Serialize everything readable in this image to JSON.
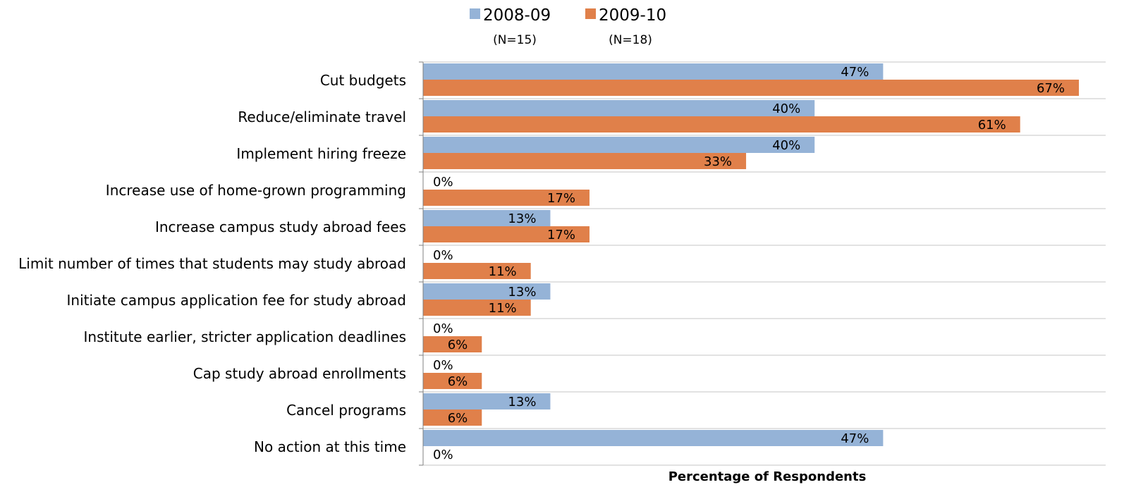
{
  "chart_data": {
    "type": "bar",
    "orientation": "horizontal",
    "categories": [
      "Cut budgets",
      "Reduce/eliminate travel",
      "Implement hiring freeze",
      "Increase use of home-grown programming",
      "Increase campus study abroad fees",
      "Limit number of times that students may study abroad",
      "Initiate campus application fee for study abroad",
      "Institute earlier, stricter application deadlines",
      "Cap study abroad enrollments",
      "Cancel programs",
      "No action at this time"
    ],
    "series": [
      {
        "name": "2008-09",
        "note": "(N=15)",
        "color": "#95b3d7",
        "values": [
          47,
          40,
          40,
          0,
          13,
          0,
          13,
          0,
          0,
          13,
          47
        ],
        "labels": [
          "47%",
          "40%",
          "40%",
          "0%",
          "13%",
          "0%",
          "13%",
          "0%",
          "0%",
          "13%",
          "47%"
        ]
      },
      {
        "name": "2009-10",
        "note": "(N=18)",
        "color": "#e0804a",
        "values": [
          67,
          61,
          33,
          17,
          17,
          11,
          11,
          6,
          6,
          6,
          0
        ],
        "labels": [
          "67%",
          "61%",
          "33%",
          "17%",
          "17%",
          "11%",
          "11%",
          "6%",
          "6%",
          "6%",
          "0%"
        ]
      }
    ],
    "xlabel": "Percentage of Respondents",
    "xlim": [
      0,
      70
    ],
    "grid": "horizontal separators between categories",
    "legend_position": "top"
  }
}
